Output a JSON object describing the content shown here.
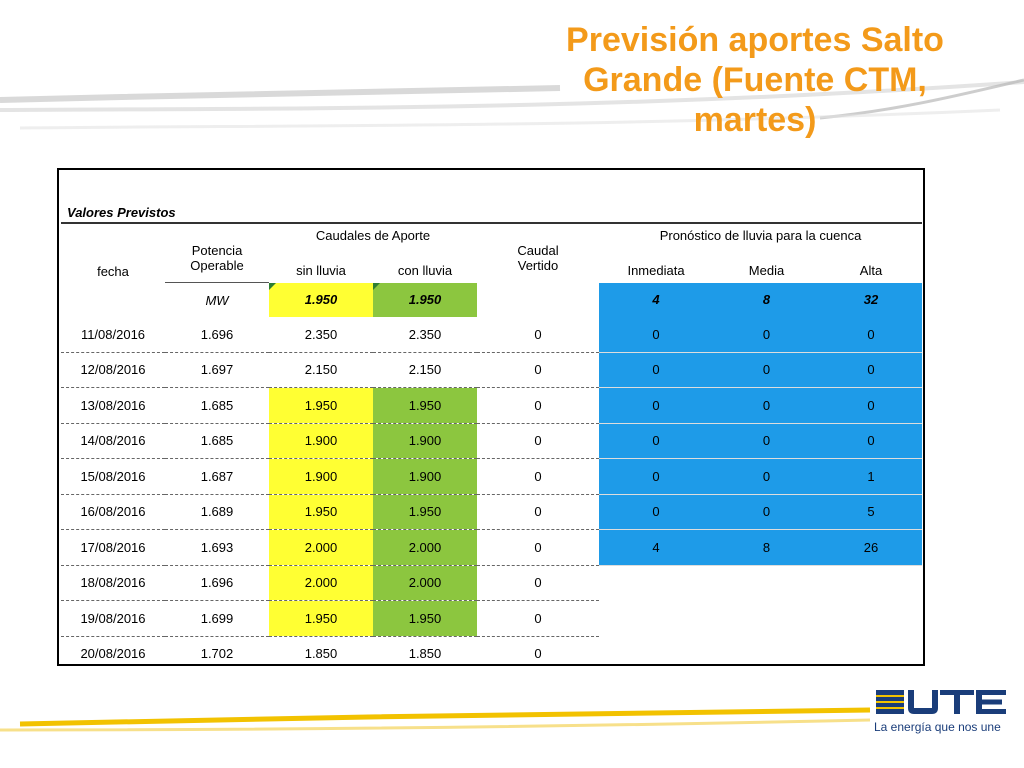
{
  "title": "Previsión aportes Salto Grande (Fuente CTM, martes)",
  "section_label": "Valores Previstos",
  "headers": {
    "fecha": "fecha",
    "potencia": "Potencia",
    "operable": "Operable",
    "caudales": "Caudales de Aporte",
    "sin_lluvia": "sin lluvia",
    "con_lluvia": "con lluvia",
    "caudal": "Caudal",
    "vertido": "Vertido",
    "pronostico": "Pronóstico de lluvia para la cuenca",
    "inmediata": "Inmediata",
    "media": "Media",
    "alta": "Alta"
  },
  "summary": {
    "unit": "MW",
    "sin_lluvia": "1.950",
    "con_lluvia": "1.950",
    "inmediata": "4",
    "media": "8",
    "alta": "32"
  },
  "rows": [
    {
      "fecha": "11/08/2016",
      "potencia": "1.696",
      "sin": "2.350",
      "con": "2.350",
      "vertido": "0",
      "inm": "0",
      "med": "0",
      "alta": "0"
    },
    {
      "fecha": "12/08/2016",
      "potencia": "1.697",
      "sin": "2.150",
      "con": "2.150",
      "vertido": "0",
      "inm": "0",
      "med": "0",
      "alta": "0"
    },
    {
      "fecha": "13/08/2016",
      "potencia": "1.685",
      "sin": "1.950",
      "con": "1.950",
      "vertido": "0",
      "inm": "0",
      "med": "0",
      "alta": "0"
    },
    {
      "fecha": "14/08/2016",
      "potencia": "1.685",
      "sin": "1.900",
      "con": "1.900",
      "vertido": "0",
      "inm": "0",
      "med": "0",
      "alta": "0"
    },
    {
      "fecha": "15/08/2016",
      "potencia": "1.687",
      "sin": "1.900",
      "con": "1.900",
      "vertido": "0",
      "inm": "0",
      "med": "0",
      "alta": "1"
    },
    {
      "fecha": "16/08/2016",
      "potencia": "1.689",
      "sin": "1.950",
      "con": "1.950",
      "vertido": "0",
      "inm": "0",
      "med": "0",
      "alta": "5"
    },
    {
      "fecha": "17/08/2016",
      "potencia": "1.693",
      "sin": "2.000",
      "con": "2.000",
      "vertido": "0",
      "inm": "4",
      "med": "8",
      "alta": "26"
    },
    {
      "fecha": "18/08/2016",
      "potencia": "1.696",
      "sin": "2.000",
      "con": "2.000",
      "vertido": "0"
    },
    {
      "fecha": "19/08/2016",
      "potencia": "1.699",
      "sin": "1.950",
      "con": "1.950",
      "vertido": "0"
    },
    {
      "fecha": "20/08/2016",
      "potencia": "1.702",
      "sin": "1.850",
      "con": "1.850",
      "vertido": "0"
    }
  ],
  "highlight": {
    "yellow_color": "#ffff33",
    "green_color": "#8cc63f",
    "blue_color": "#1e9be8",
    "title_color": "#f39a1a"
  },
  "logo": {
    "brand": "UTE",
    "tagline": "La energía que nos une"
  }
}
